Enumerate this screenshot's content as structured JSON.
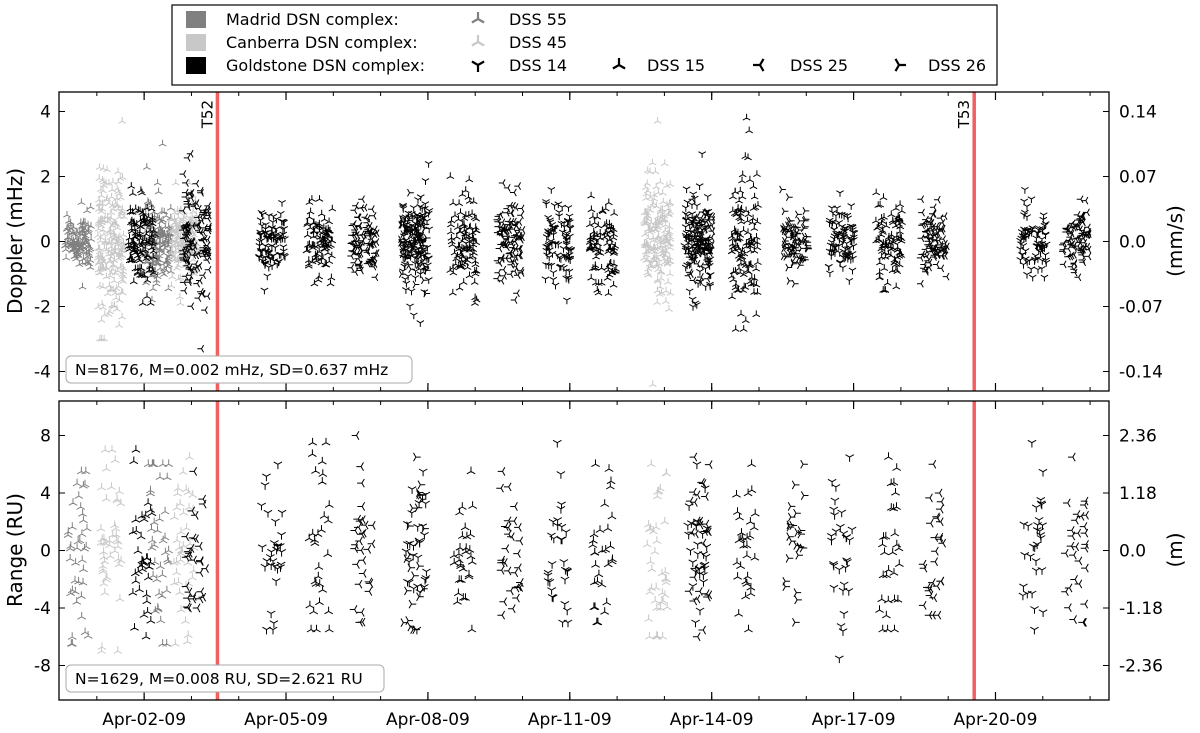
{
  "legend": {
    "entries": [
      {
        "label": "Madrid DSN complex:",
        "color": "#808080"
      },
      {
        "label": "Canberra DSN complex:",
        "color": "#c8c8c8"
      },
      {
        "label": "Goldstone DSN complex:",
        "color": "#000000"
      }
    ],
    "stations": [
      {
        "label": "DSS 55",
        "color": "#808080",
        "marker": "tri-up"
      },
      {
        "label": "DSS 45",
        "color": "#c8c8c8",
        "marker": "tri-up"
      },
      {
        "label": "DSS 14",
        "color": "#000000",
        "marker": "tri-down"
      },
      {
        "label": "DSS 15",
        "color": "#000000",
        "marker": "tri-up"
      },
      {
        "label": "DSS 25",
        "color": "#000000",
        "marker": "tri-left"
      },
      {
        "label": "DSS 26",
        "color": "#000000",
        "marker": "tri-right"
      }
    ]
  },
  "chart_data": [
    {
      "type": "scatter",
      "panel": "doppler",
      "ylabel": "Doppler (mHz)",
      "ylabel_right": "(mm/s)",
      "ylim": [
        -4.6,
        4.6
      ],
      "yticks": [
        4,
        2,
        0,
        -2,
        -4
      ],
      "ytick_labels": [
        "4",
        "2",
        "0",
        "-2",
        "-4"
      ],
      "yticks_right": [
        0.14,
        0.07,
        0.0,
        -0.07,
        -0.14
      ],
      "ytick_labels_right": [
        "0.14",
        "0.07",
        "0.0",
        "-0.07",
        "-0.14"
      ],
      "right_per_left": 0.035,
      "stats_label": "N=8176, M=0.002 mHz, SD=0.637 mHz",
      "events": [
        {
          "label": "T52",
          "x": 3.55,
          "color": "#f06060"
        },
        {
          "label": "T53",
          "x": 19.55,
          "color": "#f06060"
        }
      ],
      "series": [
        {
          "name": "DSS 55",
          "color": "#808080",
          "marker": "tri-up",
          "passes": [
            {
              "x": 0.6,
              "mean": 0,
              "sd": 0.4,
              "min": -1.4,
              "max": 1.2,
              "n": 120
            },
            {
              "x": 2.3,
              "mean": 0,
              "sd": 0.6,
              "min": -1.8,
              "max": 3.0,
              "n": 160
            }
          ]
        },
        {
          "name": "DSS 45",
          "color": "#c8c8c8",
          "marker": "tri-up",
          "passes": [
            {
              "x": 1.3,
              "mean": 0,
              "sd": 1.1,
              "min": -3.0,
              "max": 3.7,
              "n": 200
            },
            {
              "x": 2.85,
              "mean": 0,
              "sd": 0.6,
              "min": -1.9,
              "max": 1.8,
              "n": 150
            },
            {
              "x": 12.85,
              "mean": 0,
              "sd": 0.9,
              "min": -4.4,
              "max": 3.7,
              "n": 180
            }
          ]
        },
        {
          "name": "DSS 14",
          "color": "#000000",
          "marker": "tri-down",
          "passes": [
            {
              "x": 4.7,
              "mean": 0,
              "sd": 0.5,
              "min": -1.5,
              "max": 1.2,
              "n": 90
            },
            {
              "x": 7.75,
              "mean": 0,
              "sd": 0.8,
              "min": -2.5,
              "max": 2.4,
              "n": 110
            },
            {
              "x": 10.75,
              "mean": 0,
              "sd": 0.6,
              "min": -1.8,
              "max": 1.6,
              "n": 90
            },
            {
              "x": 13.7,
              "mean": 0,
              "sd": 0.8,
              "min": -2.0,
              "max": 2.7,
              "n": 100
            },
            {
              "x": 16.75,
              "mean": 0,
              "sd": 0.5,
              "min": -1.2,
              "max": 1.5,
              "n": 90
            },
            {
              "x": 20.8,
              "mean": 0,
              "sd": 0.5,
              "min": -1.1,
              "max": 1.6,
              "n": 80
            }
          ]
        },
        {
          "name": "DSS 15",
          "color": "#000000",
          "marker": "tri-up",
          "passes": [
            {
              "x": 1.95,
              "mean": 0,
              "sd": 0.6,
              "min": -1.9,
              "max": 1.7,
              "n": 120
            },
            {
              "x": 5.7,
              "mean": 0,
              "sd": 0.5,
              "min": -1.3,
              "max": 1.3,
              "n": 90
            },
            {
              "x": 8.75,
              "mean": 0,
              "sd": 0.7,
              "min": -1.9,
              "max": 2.0,
              "n": 100
            },
            {
              "x": 11.7,
              "mean": 0,
              "sd": 0.6,
              "min": -1.6,
              "max": 1.4,
              "n": 90
            },
            {
              "x": 14.7,
              "mean": 0,
              "sd": 1.0,
              "min": -2.7,
              "max": 3.8,
              "n": 120
            },
            {
              "x": 17.75,
              "mean": 0,
              "sd": 0.6,
              "min": -1.5,
              "max": 1.5,
              "n": 90
            }
          ]
        },
        {
          "name": "DSS 25",
          "color": "#000000",
          "marker": "tri-left",
          "passes": [
            {
              "x": 3.1,
              "mean": 0,
              "sd": 0.9,
              "min": -3.3,
              "max": 2.7,
              "n": 130
            },
            {
              "x": 6.65,
              "mean": 0,
              "sd": 0.5,
              "min": -1.1,
              "max": 1.3,
              "n": 90
            },
            {
              "x": 9.75,
              "mean": 0,
              "sd": 0.6,
              "min": -1.8,
              "max": 1.8,
              "n": 100
            },
            {
              "x": 13.75,
              "mean": 0,
              "sd": 0.5,
              "min": -1.2,
              "max": 1.3,
              "n": 80
            },
            {
              "x": 18.7,
              "mean": 0,
              "sd": 0.5,
              "min": -1.3,
              "max": 1.3,
              "n": 90
            },
            {
              "x": 21.7,
              "mean": 0,
              "sd": 0.5,
              "min": -1.1,
              "max": 1.3,
              "n": 80
            }
          ]
        },
        {
          "name": "DSS 26",
          "color": "#000000",
          "marker": "tri-right",
          "passes": [
            {
              "x": 7.7,
              "mean": 0,
              "sd": 0.5,
              "min": -1.6,
              "max": 1.5,
              "n": 80
            },
            {
              "x": 15.75,
              "mean": 0,
              "sd": 0.5,
              "min": -1.3,
              "max": 1.6,
              "n": 80
            }
          ]
        }
      ]
    },
    {
      "type": "scatter",
      "panel": "range",
      "ylabel": "Range (RU)",
      "ylabel_right": "(m)",
      "ylim": [
        -10.4,
        10.4
      ],
      "yticks": [
        8,
        4,
        0,
        -4,
        -8
      ],
      "ytick_labels": [
        "8",
        "4",
        "0",
        "-4",
        "-8"
      ],
      "yticks_right": [
        2.36,
        1.18,
        0.0,
        -1.18,
        -2.36
      ],
      "ytick_labels_right": [
        "2.36",
        "1.18",
        "0.0",
        "-1.18",
        "-2.36"
      ],
      "right_per_left": 0.295,
      "stats_label": "N=1629, M=0.008 RU, SD=2.621 RU",
      "xticks": [
        2,
        5,
        8,
        11,
        14,
        17,
        20
      ],
      "xtick_labels": [
        "Apr-02-09",
        "Apr-05-09",
        "Apr-08-09",
        "Apr-11-09",
        "Apr-14-09",
        "Apr-17-09",
        "Apr-20-09"
      ],
      "xlim": [
        0.2,
        22.4
      ],
      "events": [
        {
          "label": "",
          "x": 3.55,
          "color": "#f06060"
        },
        {
          "label": "",
          "x": 19.55,
          "color": "#f06060"
        }
      ],
      "series": [
        {
          "name": "DSS 55",
          "color": "#808080",
          "marker": "tri-up",
          "passes": [
            {
              "x": 0.6,
              "mean": 0,
              "sd": 3.0,
              "min": -6.5,
              "max": 5.5,
              "n": 40
            },
            {
              "x": 2.3,
              "mean": 0,
              "sd": 3.0,
              "min": -6.5,
              "max": 6.0,
              "n": 40
            }
          ]
        },
        {
          "name": "DSS 45",
          "color": "#c8c8c8",
          "marker": "tri-up",
          "passes": [
            {
              "x": 1.3,
              "mean": 0,
              "sd": 3.2,
              "min": -7.0,
              "max": 7.0,
              "n": 45
            },
            {
              "x": 2.85,
              "mean": 0,
              "sd": 3.0,
              "min": -6.5,
              "max": 6.5,
              "n": 40
            },
            {
              "x": 12.85,
              "mean": 0,
              "sd": 3.2,
              "min": -6.0,
              "max": 6.0,
              "n": 40
            }
          ]
        },
        {
          "name": "DSS 14",
          "color": "#000000",
          "marker": "tri-down",
          "passes": [
            {
              "x": 4.7,
              "mean": 0,
              "sd": 2.6,
              "min": -5.5,
              "max": 6.0,
              "n": 30
            },
            {
              "x": 7.75,
              "mean": 0,
              "sd": 2.5,
              "min": -5.5,
              "max": 5.5,
              "n": 30
            },
            {
              "x": 10.75,
              "mean": 0,
              "sd": 2.6,
              "min": -5.0,
              "max": 7.5,
              "n": 30
            },
            {
              "x": 13.7,
              "mean": 0,
              "sd": 2.5,
              "min": -5.0,
              "max": 6.0,
              "n": 30
            },
            {
              "x": 16.75,
              "mean": 0,
              "sd": 2.8,
              "min": -7.5,
              "max": 6.5,
              "n": 30
            },
            {
              "x": 20.8,
              "mean": 0,
              "sd": 2.8,
              "min": -5.5,
              "max": 7.5,
              "n": 30
            }
          ]
        },
        {
          "name": "DSS 15",
          "color": "#000000",
          "marker": "tri-up",
          "passes": [
            {
              "x": 1.95,
              "mean": 0,
              "sd": 2.6,
              "min": -6.0,
              "max": 7.0,
              "n": 35
            },
            {
              "x": 5.7,
              "mean": 0,
              "sd": 2.8,
              "min": -5.5,
              "max": 7.5,
              "n": 30
            },
            {
              "x": 8.75,
              "mean": 0,
              "sd": 2.4,
              "min": -5.5,
              "max": 5.5,
              "n": 30
            },
            {
              "x": 11.7,
              "mean": 0,
              "sd": 2.6,
              "min": -5.0,
              "max": 6.0,
              "n": 30
            },
            {
              "x": 14.7,
              "mean": 0,
              "sd": 2.6,
              "min": -5.5,
              "max": 6.0,
              "n": 30
            },
            {
              "x": 17.75,
              "mean": 0,
              "sd": 2.8,
              "min": -5.5,
              "max": 6.5,
              "n": 30
            }
          ]
        },
        {
          "name": "DSS 25",
          "color": "#000000",
          "marker": "tri-left",
          "passes": [
            {
              "x": 3.1,
              "mean": 0,
              "sd": 2.4,
              "min": -4.0,
              "max": 5.5,
              "n": 30
            },
            {
              "x": 6.65,
              "mean": 0,
              "sd": 2.5,
              "min": -5.0,
              "max": 8.0,
              "n": 30
            },
            {
              "x": 9.75,
              "mean": 0,
              "sd": 2.4,
              "min": -4.5,
              "max": 5.5,
              "n": 30
            },
            {
              "x": 13.75,
              "mean": 0,
              "sd": 2.8,
              "min": -6.0,
              "max": 6.5,
              "n": 30
            },
            {
              "x": 18.7,
              "mean": 0,
              "sd": 2.8,
              "min": -4.5,
              "max": 6.0,
              "n": 30
            },
            {
              "x": 21.7,
              "mean": 0,
              "sd": 2.6,
              "min": -5.0,
              "max": 6.5,
              "n": 30
            }
          ]
        },
        {
          "name": "DSS 26",
          "color": "#000000",
          "marker": "tri-right",
          "passes": [
            {
              "x": 7.7,
              "mean": 0,
              "sd": 2.6,
              "min": -5.5,
              "max": 6.5,
              "n": 25
            },
            {
              "x": 15.75,
              "mean": 0,
              "sd": 2.6,
              "min": -5.0,
              "max": 6.0,
              "n": 25
            }
          ]
        }
      ]
    }
  ]
}
